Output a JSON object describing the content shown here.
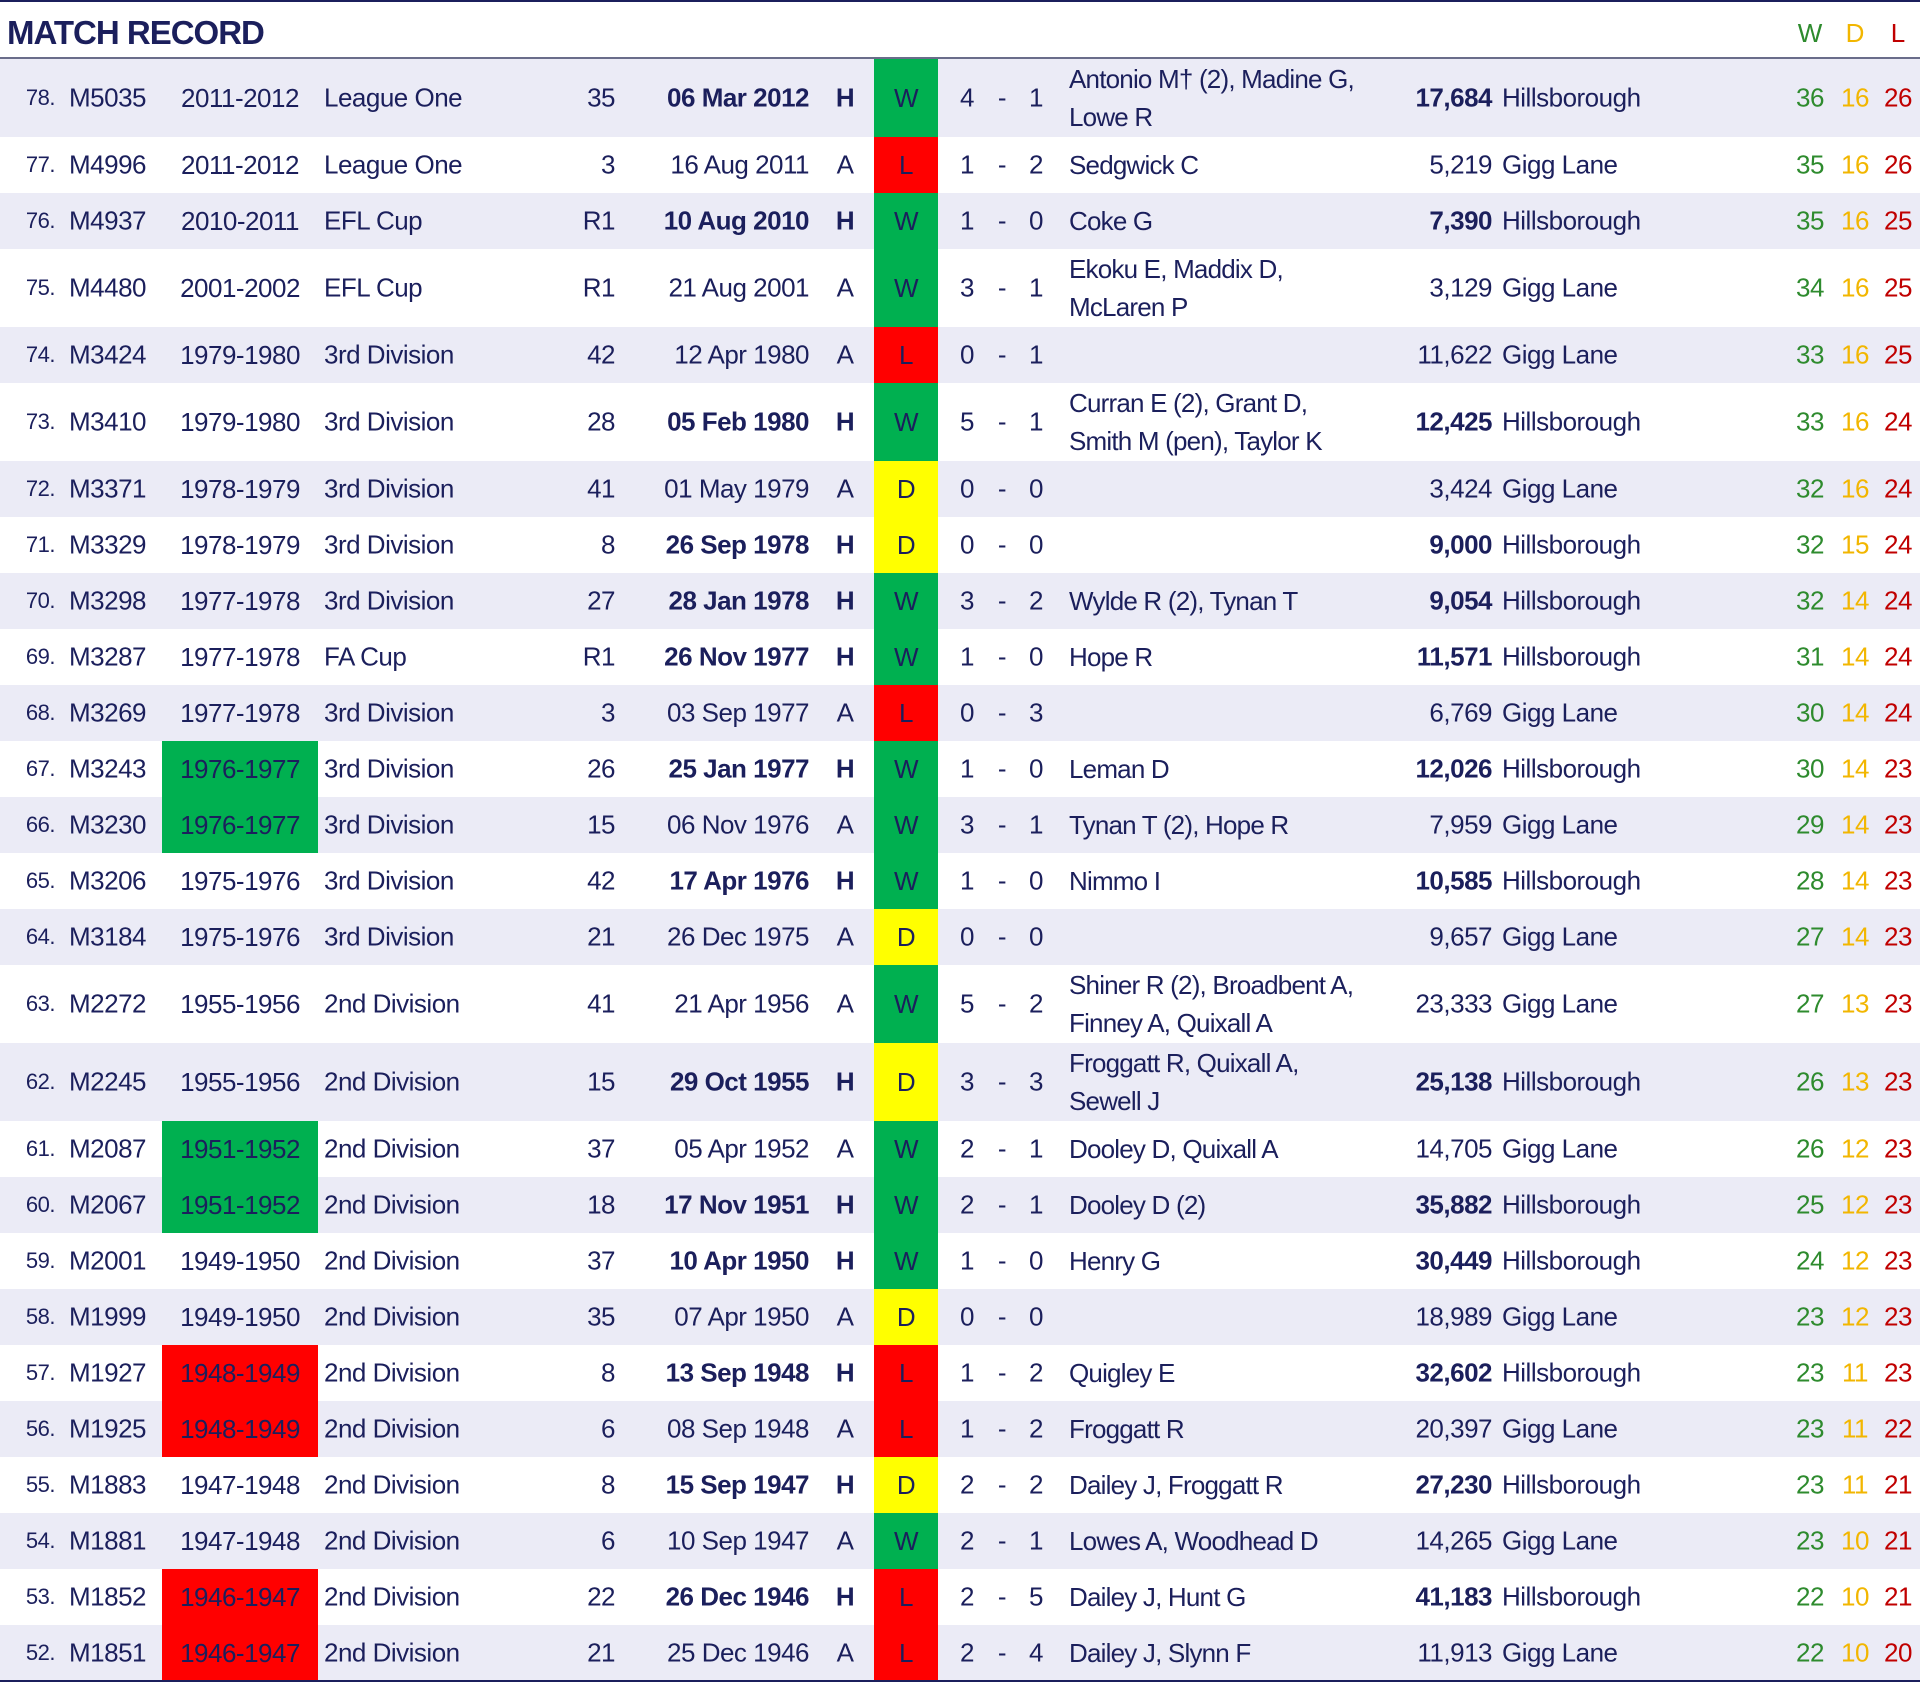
{
  "title": "MATCH RECORD",
  "wdl_headers": {
    "w": "W",
    "d": "D",
    "l": "L"
  },
  "colors": {
    "W": "#00b050",
    "L": "#ff0000",
    "D": "#ffff00",
    "season_green": "#00b050",
    "season_red": "#ff0000"
  },
  "rows": [
    {
      "n": "78.",
      "code": "M5035",
      "season": "2011-2012",
      "comp": "League One",
      "rnd": "35",
      "date": "06 Mar 2012",
      "ha": "H",
      "res": "W",
      "s1": "4",
      "s2": "1",
      "scorers": "Antonio M† (2), Madine G, Lowe R",
      "att": "17,684",
      "venue": "Hillsborough",
      "w": "36",
      "d": "16",
      "l": "26"
    },
    {
      "n": "77.",
      "code": "M4996",
      "season": "2011-2012",
      "comp": "League One",
      "rnd": "3",
      "date": "16 Aug 2011",
      "ha": "A",
      "res": "L",
      "s1": "1",
      "s2": "2",
      "scorers": "Sedgwick C",
      "att": "5,219",
      "venue": "Gigg Lane",
      "w": "35",
      "d": "16",
      "l": "26"
    },
    {
      "n": "76.",
      "code": "M4937",
      "season": "2010-2011",
      "comp": "EFL Cup",
      "rnd": "R1",
      "date": "10 Aug 2010",
      "ha": "H",
      "res": "W",
      "s1": "1",
      "s2": "0",
      "scorers": "Coke G",
      "att": "7,390",
      "venue": "Hillsborough",
      "w": "35",
      "d": "16",
      "l": "25"
    },
    {
      "n": "75.",
      "code": "M4480",
      "season": "2001-2002",
      "comp": "EFL Cup",
      "rnd": "R1",
      "date": "21 Aug 2001",
      "ha": "A",
      "res": "W",
      "s1": "3",
      "s2": "1",
      "scorers": "Ekoku E, Maddix D, McLaren P",
      "att": "3,129",
      "venue": "Gigg Lane",
      "w": "34",
      "d": "16",
      "l": "25"
    },
    {
      "n": "74.",
      "code": "M3424",
      "season": "1979-1980",
      "comp": "3rd Division",
      "rnd": "42",
      "date": "12 Apr 1980",
      "ha": "A",
      "res": "L",
      "s1": "0",
      "s2": "1",
      "scorers": "",
      "att": "11,622",
      "venue": "Gigg Lane",
      "w": "33",
      "d": "16",
      "l": "25"
    },
    {
      "n": "73.",
      "code": "M3410",
      "season": "1979-1980",
      "comp": "3rd Division",
      "rnd": "28",
      "date": "05 Feb 1980",
      "ha": "H",
      "res": "W",
      "s1": "5",
      "s2": "1",
      "scorers": "Curran E (2), Grant D, Smith M (pen), Taylor K",
      "att": "12,425",
      "venue": "Hillsborough",
      "w": "33",
      "d": "16",
      "l": "24"
    },
    {
      "n": "72.",
      "code": "M3371",
      "season": "1978-1979",
      "comp": "3rd Division",
      "rnd": "41",
      "date": "01 May 1979",
      "ha": "A",
      "res": "D",
      "s1": "0",
      "s2": "0",
      "scorers": "",
      "att": "3,424",
      "venue": "Gigg Lane",
      "w": "32",
      "d": "16",
      "l": "24"
    },
    {
      "n": "71.",
      "code": "M3329",
      "season": "1978-1979",
      "comp": "3rd Division",
      "rnd": "8",
      "date": "26 Sep 1978",
      "ha": "H",
      "res": "D",
      "s1": "0",
      "s2": "0",
      "scorers": "",
      "att": "9,000",
      "venue": "Hillsborough",
      "w": "32",
      "d": "15",
      "l": "24"
    },
    {
      "n": "70.",
      "code": "M3298",
      "season": "1977-1978",
      "comp": "3rd Division",
      "rnd": "27",
      "date": "28 Jan 1978",
      "ha": "H",
      "res": "W",
      "s1": "3",
      "s2": "2",
      "scorers": "Wylde R (2), Tynan T",
      "att": "9,054",
      "venue": "Hillsborough",
      "w": "32",
      "d": "14",
      "l": "24"
    },
    {
      "n": "69.",
      "code": "M3287",
      "season": "1977-1978",
      "comp": "FA Cup",
      "rnd": "R1",
      "date": "26 Nov 1977",
      "ha": "H",
      "res": "W",
      "s1": "1",
      "s2": "0",
      "scorers": "Hope R",
      "att": "11,571",
      "venue": "Hillsborough",
      "w": "31",
      "d": "14",
      "l": "24"
    },
    {
      "n": "68.",
      "code": "M3269",
      "season": "1977-1978",
      "comp": "3rd Division",
      "rnd": "3",
      "date": "03 Sep 1977",
      "ha": "A",
      "res": "L",
      "s1": "0",
      "s2": "3",
      "scorers": "",
      "att": "6,769",
      "venue": "Gigg Lane",
      "w": "30",
      "d": "14",
      "l": "24"
    },
    {
      "n": "67.",
      "code": "M3243",
      "season": "1976-1977",
      "season_hl": "green",
      "comp": "3rd Division",
      "rnd": "26",
      "date": "25 Jan 1977",
      "ha": "H",
      "res": "W",
      "s1": "1",
      "s2": "0",
      "scorers": "Leman D",
      "att": "12,026",
      "venue": "Hillsborough",
      "w": "30",
      "d": "14",
      "l": "23"
    },
    {
      "n": "66.",
      "code": "M3230",
      "season": "1976-1977",
      "season_hl": "green",
      "comp": "3rd Division",
      "rnd": "15",
      "date": "06 Nov 1976",
      "ha": "A",
      "res": "W",
      "s1": "3",
      "s2": "1",
      "scorers": "Tynan T (2), Hope R",
      "att": "7,959",
      "venue": "Gigg Lane",
      "w": "29",
      "d": "14",
      "l": "23"
    },
    {
      "n": "65.",
      "code": "M3206",
      "season": "1975-1976",
      "comp": "3rd Division",
      "rnd": "42",
      "date": "17 Apr 1976",
      "ha": "H",
      "res": "W",
      "s1": "1",
      "s2": "0",
      "scorers": "Nimmo I",
      "att": "10,585",
      "venue": "Hillsborough",
      "w": "28",
      "d": "14",
      "l": "23"
    },
    {
      "n": "64.",
      "code": "M3184",
      "season": "1975-1976",
      "comp": "3rd Division",
      "rnd": "21",
      "date": "26 Dec 1975",
      "ha": "A",
      "res": "D",
      "s1": "0",
      "s2": "0",
      "scorers": "",
      "att": "9,657",
      "venue": "Gigg Lane",
      "w": "27",
      "d": "14",
      "l": "23"
    },
    {
      "n": "63.",
      "code": "M2272",
      "season": "1955-1956",
      "comp": "2nd Division",
      "rnd": "41",
      "date": "21 Apr 1956",
      "ha": "A",
      "res": "W",
      "s1": "5",
      "s2": "2",
      "scorers": "Shiner R (2), Broadbent A, Finney A, Quixall A",
      "att": "23,333",
      "venue": "Gigg Lane",
      "w": "27",
      "d": "13",
      "l": "23"
    },
    {
      "n": "62.",
      "code": "M2245",
      "season": "1955-1956",
      "comp": "2nd Division",
      "rnd": "15",
      "date": "29 Oct 1955",
      "ha": "H",
      "res": "D",
      "s1": "3",
      "s2": "3",
      "scorers": "Froggatt R, Quixall A, Sewell J",
      "att": "25,138",
      "venue": "Hillsborough",
      "w": "26",
      "d": "13",
      "l": "23"
    },
    {
      "n": "61.",
      "code": "M2087",
      "season": "1951-1952",
      "season_hl": "green",
      "comp": "2nd Division",
      "rnd": "37",
      "date": "05 Apr 1952",
      "ha": "A",
      "res": "W",
      "s1": "2",
      "s2": "1",
      "scorers": "Dooley D, Quixall A",
      "att": "14,705",
      "venue": "Gigg Lane",
      "w": "26",
      "d": "12",
      "l": "23"
    },
    {
      "n": "60.",
      "code": "M2067",
      "season": "1951-1952",
      "season_hl": "green",
      "comp": "2nd Division",
      "rnd": "18",
      "date": "17 Nov 1951",
      "ha": "H",
      "res": "W",
      "s1": "2",
      "s2": "1",
      "scorers": "Dooley D (2)",
      "att": "35,882",
      "venue": "Hillsborough",
      "w": "25",
      "d": "12",
      "l": "23"
    },
    {
      "n": "59.",
      "code": "M2001",
      "season": "1949-1950",
      "comp": "2nd Division",
      "rnd": "37",
      "date": "10 Apr 1950",
      "ha": "H",
      "res": "W",
      "s1": "1",
      "s2": "0",
      "scorers": "Henry G",
      "att": "30,449",
      "venue": "Hillsborough",
      "w": "24",
      "d": "12",
      "l": "23"
    },
    {
      "n": "58.",
      "code": "M1999",
      "season": "1949-1950",
      "comp": "2nd Division",
      "rnd": "35",
      "date": "07 Apr 1950",
      "ha": "A",
      "res": "D",
      "s1": "0",
      "s2": "0",
      "scorers": "",
      "att": "18,989",
      "venue": "Gigg Lane",
      "w": "23",
      "d": "12",
      "l": "23"
    },
    {
      "n": "57.",
      "code": "M1927",
      "season": "1948-1949",
      "season_hl": "red",
      "comp": "2nd Division",
      "rnd": "8",
      "date": "13 Sep 1948",
      "ha": "H",
      "res": "L",
      "s1": "1",
      "s2": "2",
      "scorers": "Quigley E",
      "att": "32,602",
      "venue": "Hillsborough",
      "w": "23",
      "d": "11",
      "l": "23"
    },
    {
      "n": "56.",
      "code": "M1925",
      "season": "1948-1949",
      "season_hl": "red",
      "comp": "2nd Division",
      "rnd": "6",
      "date": "08 Sep 1948",
      "ha": "A",
      "res": "L",
      "s1": "1",
      "s2": "2",
      "scorers": "Froggatt R",
      "att": "20,397",
      "venue": "Gigg Lane",
      "w": "23",
      "d": "11",
      "l": "22"
    },
    {
      "n": "55.",
      "code": "M1883",
      "season": "1947-1948",
      "comp": "2nd Division",
      "rnd": "8",
      "date": "15 Sep 1947",
      "ha": "H",
      "res": "D",
      "s1": "2",
      "s2": "2",
      "scorers": "Dailey J, Froggatt R",
      "att": "27,230",
      "venue": "Hillsborough",
      "w": "23",
      "d": "11",
      "l": "21"
    },
    {
      "n": "54.",
      "code": "M1881",
      "season": "1947-1948",
      "comp": "2nd Division",
      "rnd": "6",
      "date": "10 Sep 1947",
      "ha": "A",
      "res": "W",
      "s1": "2",
      "s2": "1",
      "scorers": "Lowes A, Woodhead D",
      "att": "14,265",
      "venue": "Gigg Lane",
      "w": "23",
      "d": "10",
      "l": "21"
    },
    {
      "n": "53.",
      "code": "M1852",
      "season": "1946-1947",
      "season_hl": "red",
      "comp": "2nd Division",
      "rnd": "22",
      "date": "26 Dec 1946",
      "ha": "H",
      "res": "L",
      "s1": "2",
      "s2": "5",
      "scorers": "Dailey J, Hunt G",
      "att": "41,183",
      "venue": "Hillsborough",
      "w": "22",
      "d": "10",
      "l": "21"
    },
    {
      "n": "52.",
      "code": "M1851",
      "season": "1946-1947",
      "season_hl": "red",
      "comp": "2nd Division",
      "rnd": "21",
      "date": "25 Dec 1946",
      "ha": "A",
      "res": "L",
      "s1": "2",
      "s2": "4",
      "scorers": "Dailey J, Slynn F",
      "att": "11,913",
      "venue": "Gigg Lane",
      "w": "22",
      "d": "10",
      "l": "20"
    }
  ]
}
